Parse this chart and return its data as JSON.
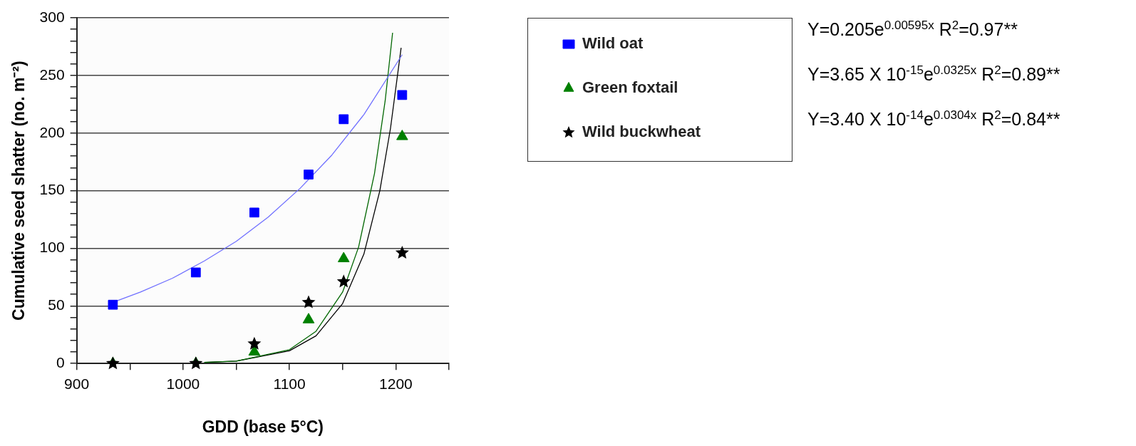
{
  "chart_data": {
    "type": "scatter",
    "xlabel": "GDD (base 5°C)",
    "ylabel": "Cumulative seed shatter (no. m⁻²)",
    "xlim": [
      900,
      1250
    ],
    "xticks": [
      900,
      {
        "value": 950,
        "label": null
      },
      1000,
      {
        "value": 1050,
        "label": null
      },
      1100,
      {
        "value": 1150,
        "label": null
      },
      1200,
      {
        "value": 1250,
        "label": null
      }
    ],
    "ylim": [
      0,
      300
    ],
    "yticks": [
      0,
      {
        "value": 10,
        "label": null
      },
      {
        "value": 20,
        "label": null
      },
      {
        "value": 30,
        "label": null
      },
      {
        "value": 40,
        "label": null
      },
      50,
      {
        "value": 60,
        "label": null
      },
      {
        "value": 70,
        "label": null
      },
      {
        "value": 80,
        "label": null
      },
      {
        "value": 90,
        "label": null
      },
      100,
      {
        "value": 110,
        "label": null
      },
      {
        "value": 120,
        "label": null
      },
      {
        "value": 130,
        "label": null
      },
      {
        "value": 140,
        "label": null
      },
      150,
      {
        "value": 160,
        "label": null
      },
      {
        "value": 170,
        "label": null
      },
      {
        "value": 180,
        "label": null
      },
      {
        "value": 190,
        "label": null
      },
      200,
      {
        "value": 210,
        "label": null
      },
      {
        "value": 220,
        "label": null
      },
      {
        "value": 230,
        "label": null
      },
      {
        "value": 240,
        "label": null
      },
      250,
      {
        "value": 260,
        "label": null
      },
      {
        "value": 270,
        "label": null
      },
      {
        "value": 280,
        "label": null
      },
      {
        "value": 290,
        "label": null
      },
      300
    ],
    "grid": "y",
    "legend": "right",
    "series": [
      {
        "name": "Wild oat",
        "color": "#0000ff",
        "marker": "square",
        "x": [
          934,
          1012,
          1067,
          1118,
          1151,
          1206
        ],
        "values": [
          51,
          79,
          131,
          164,
          212,
          233
        ]
      },
      {
        "name": "Green foxtail",
        "color": "#008000",
        "marker": "triangle",
        "x": [
          934,
          1012,
          1067,
          1118,
          1151,
          1206
        ],
        "values": [
          0,
          0,
          10,
          38,
          91,
          197
        ]
      },
      {
        "name": "Wild buckwheat",
        "color": "#000000",
        "marker": "star",
        "x": [
          934,
          1012,
          1067,
          1118,
          1151,
          1206
        ],
        "values": [
          0,
          0,
          17,
          53,
          71,
          96
        ]
      },
      {
        "type": "line",
        "color": "#7070ff",
        "marker": "none",
        "x": [
          934,
          960,
          990,
          1020,
          1050,
          1080,
          1110,
          1140,
          1170,
          1206
        ],
        "values": [
          53,
          62,
          74,
          89,
          106,
          127,
          152,
          181,
          216,
          268
        ]
      },
      {
        "type": "line",
        "color": "#006600",
        "marker": "none",
        "x": [
          1020,
          1050,
          1100,
          1125,
          1150,
          1165,
          1180,
          1190,
          1197
        ],
        "values": [
          1,
          2,
          12,
          28,
          62,
          101,
          165,
          228,
          287
        ]
      },
      {
        "type": "line",
        "color": "#000000",
        "marker": "none",
        "x": [
          1020,
          1050,
          1100,
          1125,
          1150,
          1170,
          1185,
          1195,
          1205
        ],
        "values": [
          1,
          2,
          11,
          24,
          52,
          95,
          150,
          204,
          274
        ]
      }
    ],
    "annotations": [
      "Y=0.205e$^{0.00595x}$ R$^{2}$=0.97**",
      "Y=3.65 X 10$^{-15}$e$^{0.0325x}$ R$^{2}$=0.89**",
      "Y=3.40 X 10$^{-14}$e$^{0.0304x}$ R$^{2}$=0.84**"
    ]
  }
}
